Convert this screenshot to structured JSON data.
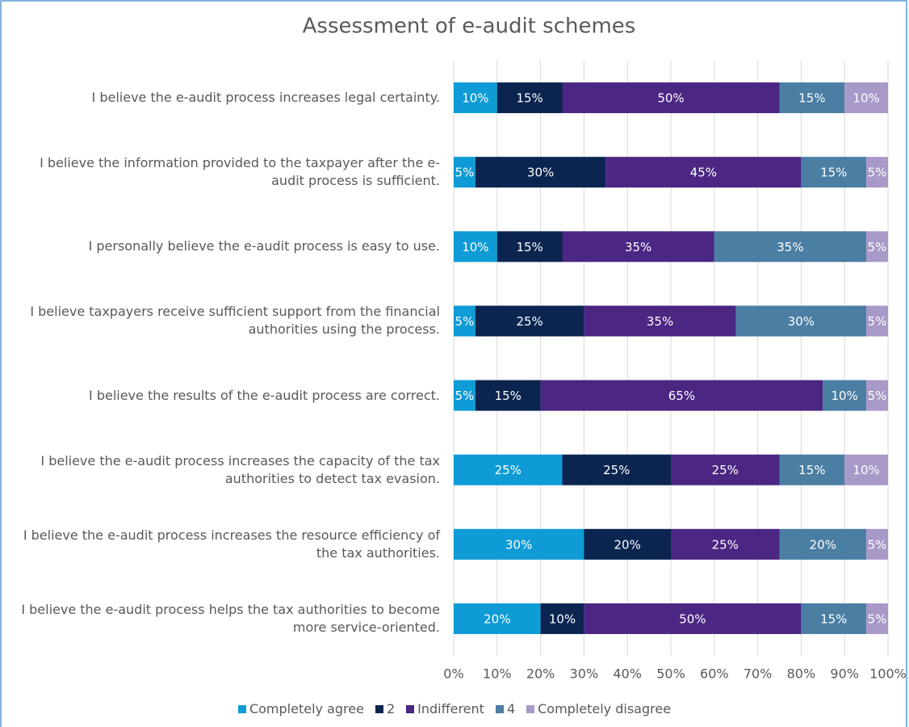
{
  "chart_data": {
    "type": "stacked_barh",
    "title": "Assessment of e-audit schemes",
    "categories": [
      "I believe the e-audit process increases legal certainty.",
      "I believe the information provided to the taxpayer after the e-audit process is sufficient.",
      "I personally believe the e-audit process is easy to use.",
      "I believe taxpayers receive sufficient support from the financial authorities using the process.",
      "I believe the results of the e-audit process are correct.",
      "I believe the e-audit process increases the capacity of the tax authorities to detect tax evasion.",
      "I believe the e-audit process increases the resource efficiency of the tax authorities.",
      "I believe the e-audit process helps the tax authorities to become more service-oriented."
    ],
    "series": [
      {
        "name": "Completely agree",
        "color": "#0e9bd6",
        "values": [
          10,
          5,
          10,
          5,
          5,
          25,
          30,
          20
        ],
        "value_labels": [
          "10%",
          "5%",
          "10%",
          "5%",
          "5%",
          "25%",
          "30%",
          "20%"
        ]
      },
      {
        "name": "2",
        "color": "#0b2550",
        "values": [
          15,
          30,
          15,
          25,
          15,
          25,
          20,
          10
        ],
        "value_labels": [
          "15%",
          "30%",
          "15%",
          "25%",
          "15%",
          "25%",
          "20%",
          "10%"
        ]
      },
      {
        "name": "Indifferent",
        "color": "#4b2683",
        "values": [
          50,
          45,
          35,
          35,
          65,
          25,
          25,
          50
        ],
        "value_labels": [
          "50%",
          "45%",
          "35%",
          "35%",
          "65%",
          "25%",
          "25%",
          "50%"
        ]
      },
      {
        "name": "4",
        "color": "#4a7ea3",
        "values": [
          15,
          15,
          35,
          30,
          10,
          15,
          20,
          15
        ],
        "value_labels": [
          "15%",
          "15%",
          "35%",
          "30%",
          "10%",
          "15%",
          "20%",
          "15%"
        ]
      },
      {
        "name": "Completely disagree",
        "color": "#a899c8",
        "values": [
          10,
          5,
          5,
          5,
          5,
          10,
          5,
          5
        ],
        "value_labels": [
          "10%",
          "5%",
          "5%",
          "5%",
          "5%",
          "10%",
          "5%",
          "5%"
        ]
      }
    ],
    "xlim": [
      0,
      100
    ],
    "xticks": [
      {
        "value": 0,
        "label": "0%"
      },
      {
        "value": 10,
        "label": "10%"
      },
      {
        "value": 20,
        "label": "20%"
      },
      {
        "value": 30,
        "label": "30%"
      },
      {
        "value": 40,
        "label": "40%"
      },
      {
        "value": 50,
        "label": "50%"
      },
      {
        "value": 60,
        "label": "60%"
      },
      {
        "value": 70,
        "label": "70%"
      },
      {
        "value": 80,
        "label": "80%"
      },
      {
        "value": 90,
        "label": "90%"
      },
      {
        "value": 100,
        "label": "100%"
      }
    ],
    "grid": true,
    "legend": "bottom"
  }
}
